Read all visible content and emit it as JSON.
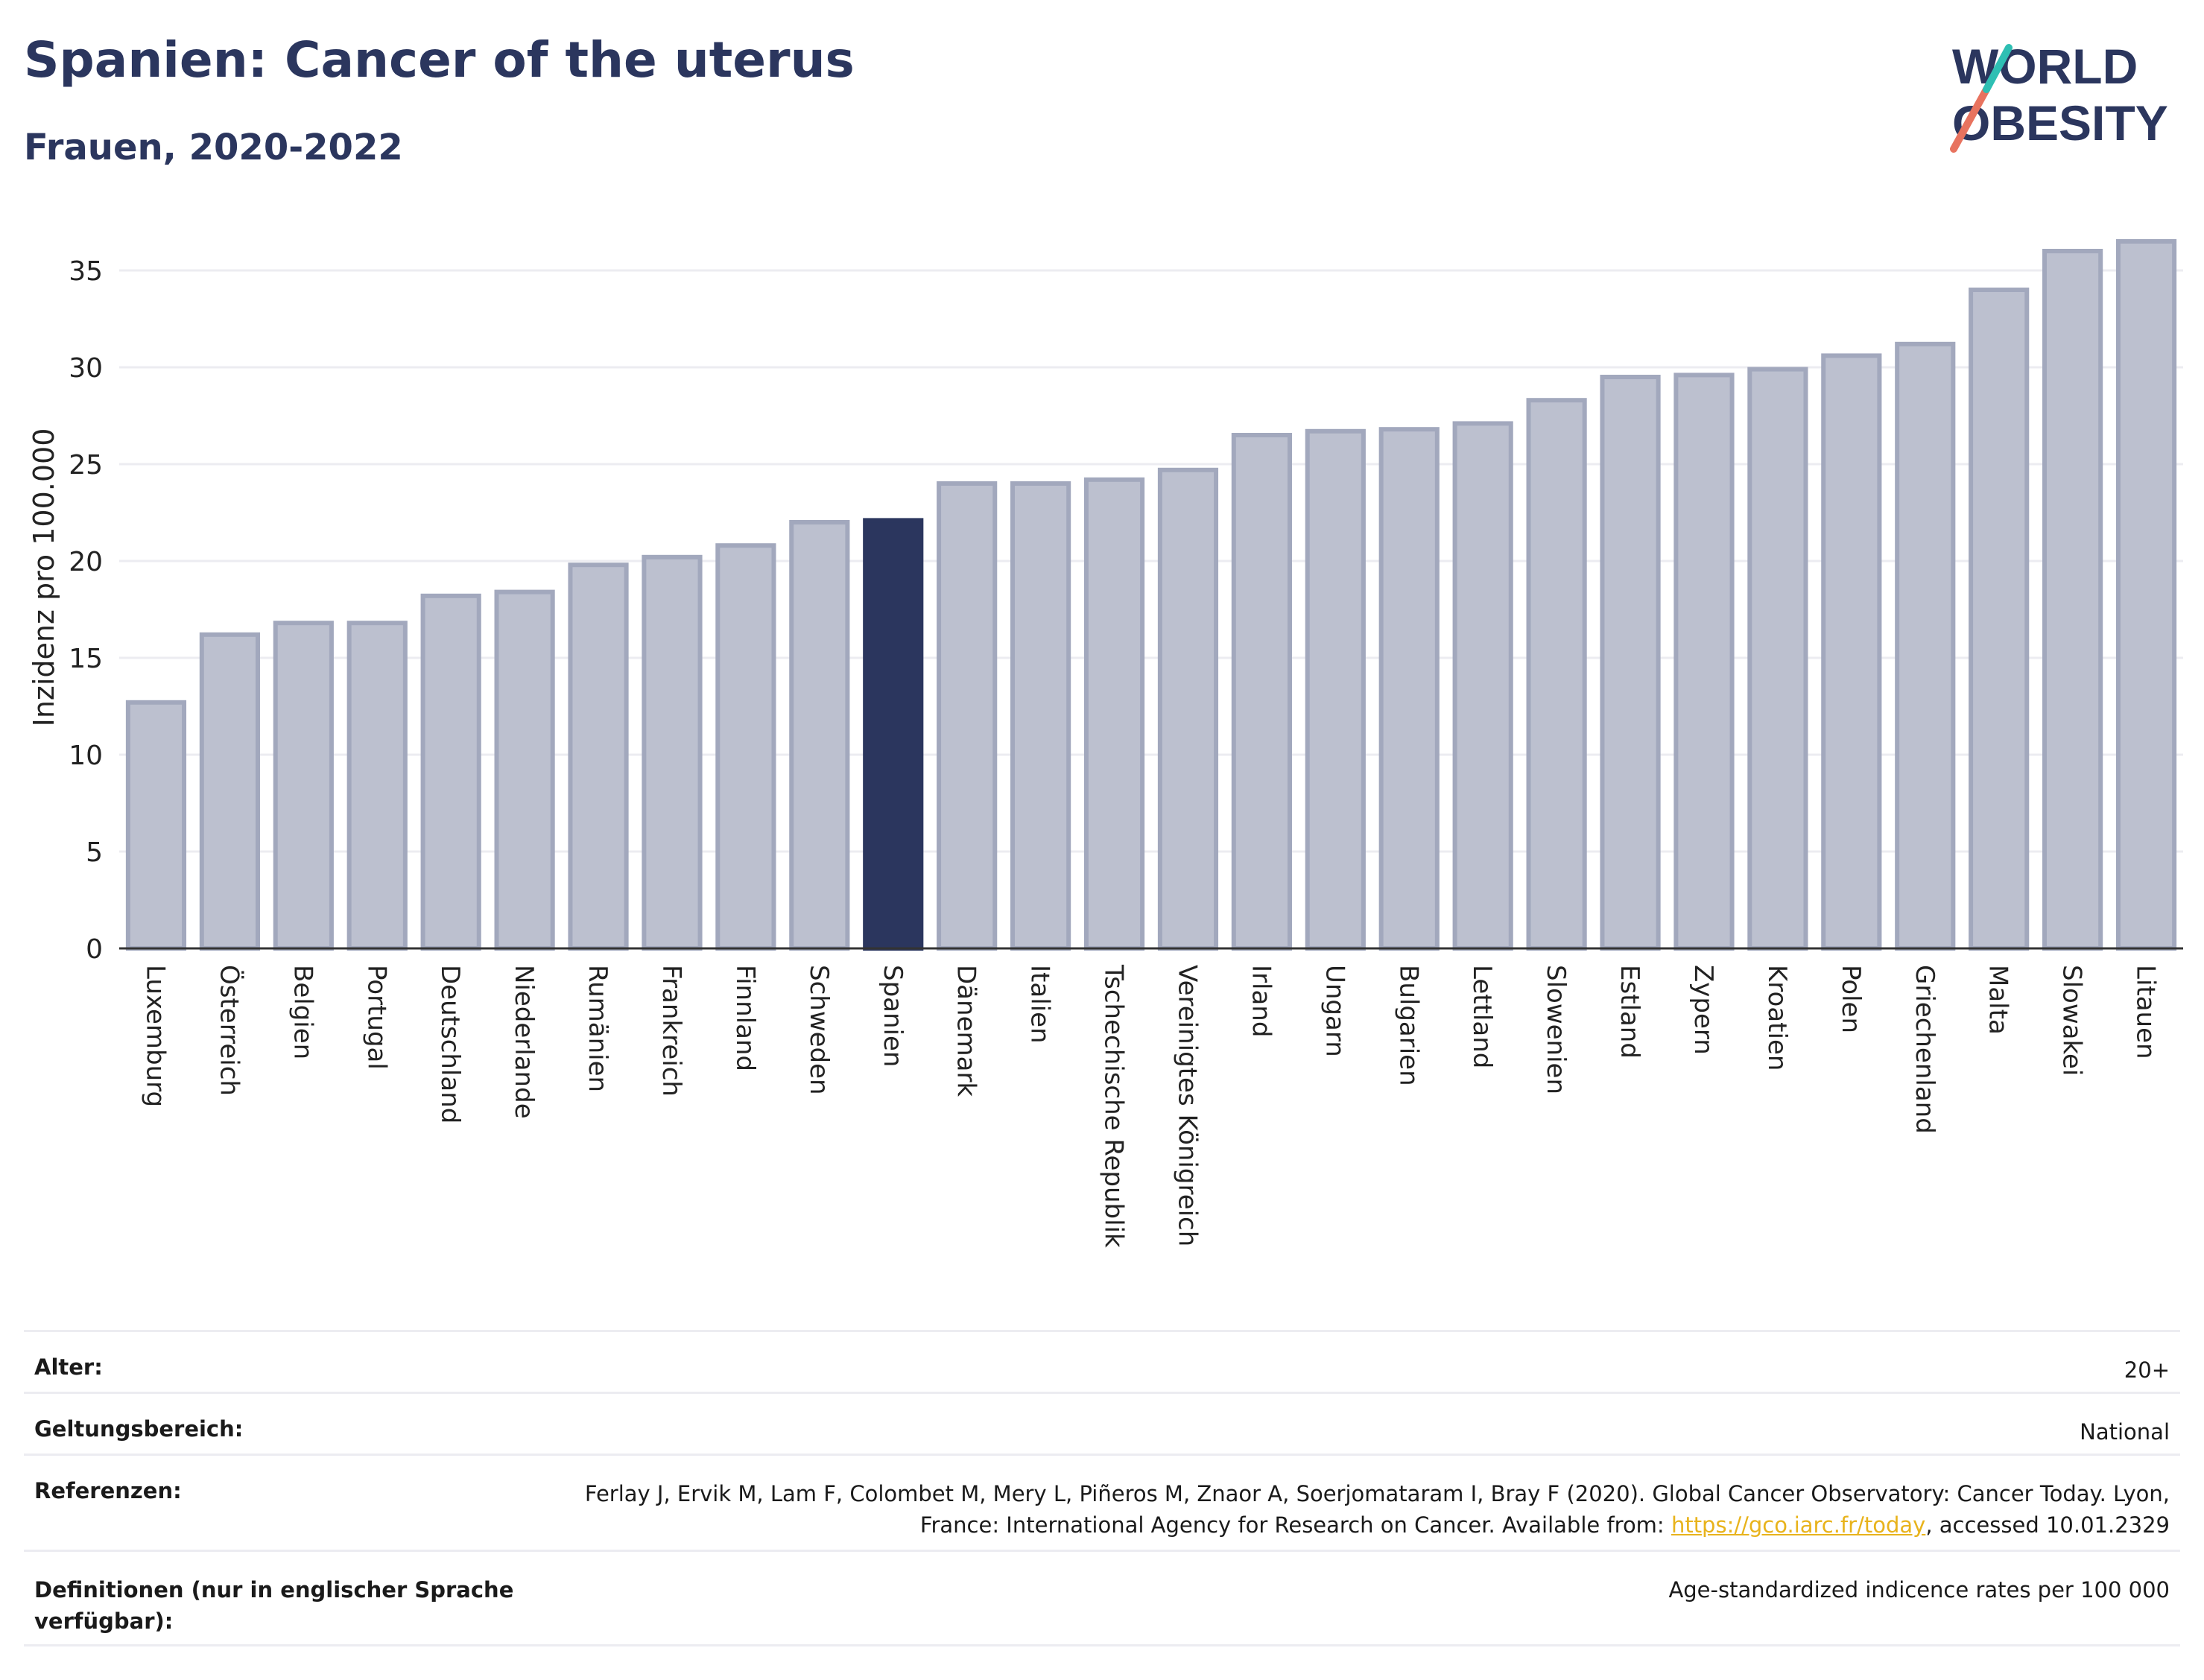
{
  "header": {
    "title": "Spanien: Cancer of the uterus",
    "subtitle": "Frauen, 2020-2022",
    "logo_text_line1": "WORLD",
    "logo_text_line2": "OBESITY"
  },
  "colors": {
    "title": "#2b365e",
    "bar_fill": "#bcc0cf",
    "bar_stroke": "#a2a8bd",
    "highlight": "#2b365e",
    "logo_teal": "#2ebfb3",
    "logo_coral": "#e8735f",
    "link": "#e8b31c"
  },
  "chart_data": {
    "type": "bar",
    "ylabel": "Inzidenz pro 100.000",
    "ylim": [
      0,
      37
    ],
    "yticks": [
      0,
      5,
      10,
      15,
      20,
      25,
      30,
      35
    ],
    "highlight": "Spanien",
    "grid": true,
    "categories": [
      "Luxemburg",
      "Österreich",
      "Belgien",
      "Portugal",
      "Deutschland",
      "Niederlande",
      "Rumänien",
      "Frankreich",
      "Finnland",
      "Schweden",
      "Spanien",
      "Dänemark",
      "Italien",
      "Tschechische Republik",
      "Vereinigtes Königreich",
      "Irland",
      "Ungarn",
      "Bulgarien",
      "Lettland",
      "Slowenien",
      "Estland",
      "Zypern",
      "Kroatien",
      "Polen",
      "Griechenland",
      "Malta",
      "Slowakei",
      "Litauen"
    ],
    "values": [
      12.7,
      16.2,
      16.8,
      16.8,
      18.2,
      18.4,
      19.8,
      20.2,
      20.8,
      22.0,
      22.1,
      24.0,
      24.0,
      24.2,
      24.7,
      26.5,
      26.7,
      26.8,
      27.1,
      28.3,
      29.5,
      29.6,
      29.9,
      30.6,
      31.2,
      34.0,
      36.0,
      36.5
    ]
  },
  "meta": {
    "rows": [
      {
        "label": "Alter:",
        "value": "20+"
      },
      {
        "label": "Geltungsbereich:",
        "value": "National"
      },
      {
        "label": "Referenzen:",
        "value_pre": "Ferlay J, Ervik M, Lam F, Colombet M, Mery L, Piñeros M, Znaor A, Soerjomataram I, Bray F (2020). Global Cancer Observatory: Cancer Today. Lyon, France: International Agency for Research on Cancer. Available from: ",
        "link": "https://gco.iarc.fr/today",
        "value_post": ", accessed 10.01.2329"
      },
      {
        "label": "Definitionen (nur in englischer Sprache verfügbar):",
        "value": "Age-standardized indicence rates per 100 000"
      }
    ]
  }
}
